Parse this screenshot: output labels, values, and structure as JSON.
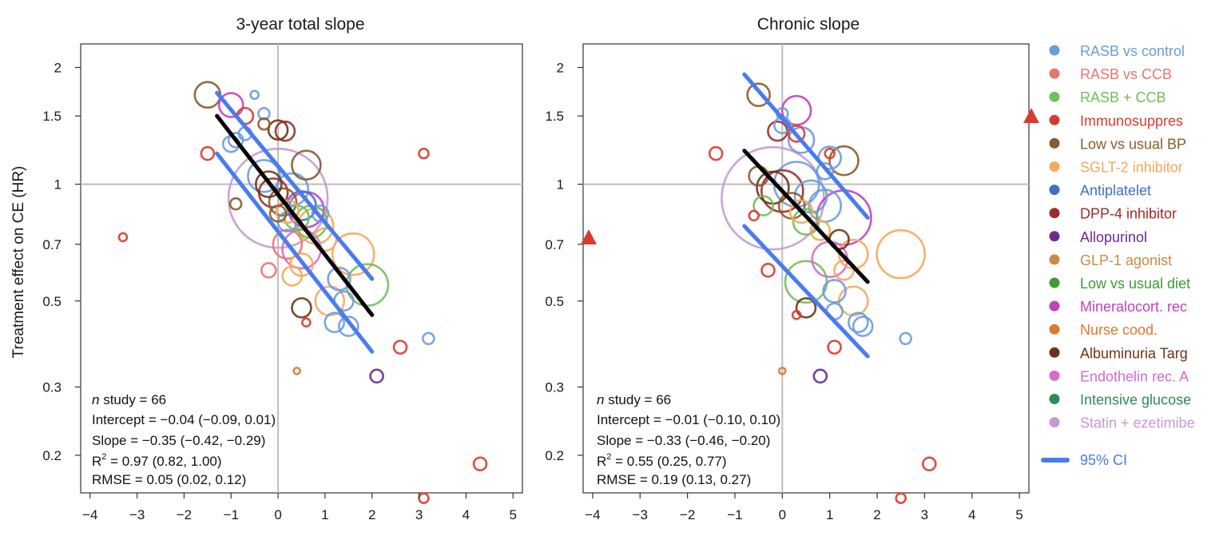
{
  "figure": {
    "ylabel": "Treatment effect on CE (HR)"
  },
  "legend": {
    "items": [
      {
        "label": "RASB vs control",
        "color": "#6a9be0"
      },
      {
        "label": "RASB vs CCB",
        "color": "#e7766e"
      },
      {
        "label": "RASB + CCB",
        "color": "#6fbf5a"
      },
      {
        "label": "Immunosuppres",
        "color": "#d83b2e"
      },
      {
        "label": "Low vs usual BP",
        "color": "#8b5a2b"
      },
      {
        "label": "SGLT-2 inhibitor",
        "color": "#f5a95b"
      },
      {
        "label": "Antiplatelet",
        "color": "#3f70c4"
      },
      {
        "label": "DPP-4 inhibitor",
        "color": "#a02a2a"
      },
      {
        "label": "Allopurinol",
        "color": "#6a2a91"
      },
      {
        "label": "GLP-1 agonist",
        "color": "#c98a45"
      },
      {
        "label": "Low vs usual diet",
        "color": "#3f9a36"
      },
      {
        "label": "Mineralocort. rec",
        "color": "#c43fc2"
      },
      {
        "label": "Nurse cood.",
        "color": "#e0782e"
      },
      {
        "label": "Albuminuria Targ",
        "color": "#6a3515"
      },
      {
        "label": "Endothelin rec. A",
        "color": "#d86ad0"
      },
      {
        "label": "Intensive glucose",
        "color": "#2f8a55"
      },
      {
        "label": "Statin + ezetimibe",
        "color": "#c49ad0"
      }
    ],
    "ci_label": "95% CI",
    "ci_color": "#4a7bf0"
  },
  "chart_data": [
    {
      "type": "scatter",
      "title": "3-year total slope",
      "xlabel": "",
      "ylabel": "Treatment effect on CE (HR)",
      "xlim": [
        -4.2,
        5.2
      ],
      "ylim": [
        0.16,
        2.3
      ],
      "y_scale": "log",
      "xticks": [
        -4,
        -3,
        -2,
        -1,
        0,
        1,
        2,
        3,
        4,
        5
      ],
      "yticks": [
        0.2,
        0.3,
        0.5,
        0.7,
        1,
        1.5,
        2
      ],
      "ytick_labels": [
        "0.2",
        "0.3",
        "0.5",
        "0.7",
        "1",
        "1.5",
        "2"
      ],
      "reference_lines": {
        "x": 0,
        "y": 1
      },
      "regression": {
        "x": [
          -1.3,
          2.0
        ],
        "y": [
          1.5,
          0.46
        ]
      },
      "ci_upper": {
        "x": [
          -1.3,
          2.0
        ],
        "y": [
          1.72,
          0.57
        ]
      },
      "ci_lower": {
        "x": [
          -1.3,
          2.0
        ],
        "y": [
          1.2,
          0.37
        ]
      },
      "stats": {
        "n_italic": "n",
        "n_rest": " study = 66",
        "intercept": "Intercept = −0.04 (−0.09, 0.01)",
        "slope": "Slope = −0.35 (−0.42, −0.29)",
        "r2_pre": "R",
        "r2_sup": "2",
        "r2_post": " = 0.97 (0.82, 1.00)",
        "rmse": "RMSE = 0.05 (0.02, 0.12)"
      },
      "points": [
        {
          "x": 0.0,
          "y": 0.92,
          "size": 62,
          "group": 16
        },
        {
          "x": -1.5,
          "y": 1.7,
          "size": 16,
          "group": 4
        },
        {
          "x": -1.0,
          "y": 1.6,
          "size": 15,
          "group": 11
        },
        {
          "x": -0.7,
          "y": 1.5,
          "size": 10,
          "group": 3
        },
        {
          "x": -0.5,
          "y": 1.7,
          "size": 5,
          "group": 0
        },
        {
          "x": -0.3,
          "y": 1.52,
          "size": 7,
          "group": 0
        },
        {
          "x": -0.3,
          "y": 1.43,
          "size": 7,
          "group": 4
        },
        {
          "x": 0.0,
          "y": 1.38,
          "size": 12,
          "group": 13
        },
        {
          "x": 0.15,
          "y": 1.37,
          "size": 12,
          "group": 7
        },
        {
          "x": -1.5,
          "y": 1.2,
          "size": 8,
          "group": 3
        },
        {
          "x": -1.0,
          "y": 1.27,
          "size": 10,
          "group": 0
        },
        {
          "x": -0.9,
          "y": 1.3,
          "size": 9,
          "group": 0
        },
        {
          "x": -0.7,
          "y": 1.35,
          "size": 8,
          "group": 0
        },
        {
          "x": -0.9,
          "y": 0.89,
          "size": 7,
          "group": 4
        },
        {
          "x": -3.3,
          "y": 0.73,
          "size": 5,
          "group": 3
        },
        {
          "x": 3.1,
          "y": 1.2,
          "size": 6,
          "group": 3
        },
        {
          "x": 0.6,
          "y": 1.12,
          "size": 18,
          "group": 4
        },
        {
          "x": -0.2,
          "y": 1.0,
          "size": 16,
          "group": 13
        },
        {
          "x": -0.1,
          "y": 0.95,
          "size": 18,
          "group": 7
        },
        {
          "x": 0.1,
          "y": 0.9,
          "size": 17,
          "group": 4
        },
        {
          "x": 0.2,
          "y": 0.85,
          "size": 14,
          "group": 5
        },
        {
          "x": -0.3,
          "y": 1.05,
          "size": 20,
          "group": 0
        },
        {
          "x": 0.3,
          "y": 0.97,
          "size": 20,
          "group": 0
        },
        {
          "x": 0.5,
          "y": 0.88,
          "size": 18,
          "group": 6
        },
        {
          "x": 0.4,
          "y": 0.82,
          "size": 15,
          "group": 2
        },
        {
          "x": 0.7,
          "y": 0.8,
          "size": 20,
          "group": 2
        },
        {
          "x": 0.8,
          "y": 0.78,
          "size": 22,
          "group": 5
        },
        {
          "x": 0.6,
          "y": 0.86,
          "size": 22,
          "group": 11
        },
        {
          "x": 0.2,
          "y": 0.8,
          "size": 12,
          "group": 0
        },
        {
          "x": 0.0,
          "y": 0.84,
          "size": 10,
          "group": 4
        },
        {
          "x": 0.9,
          "y": 0.84,
          "size": 10,
          "group": 0
        },
        {
          "x": 1.0,
          "y": 0.72,
          "size": 14,
          "group": 5
        },
        {
          "x": 0.5,
          "y": 0.68,
          "size": 24,
          "group": 14
        },
        {
          "x": 0.2,
          "y": 0.7,
          "size": 18,
          "group": 1
        },
        {
          "x": 0.5,
          "y": 0.62,
          "size": 14,
          "group": 5
        },
        {
          "x": -0.2,
          "y": 0.6,
          "size": 9,
          "group": 1
        },
        {
          "x": 0.3,
          "y": 0.58,
          "size": 12,
          "group": 5
        },
        {
          "x": 1.6,
          "y": 0.66,
          "size": 26,
          "group": 5
        },
        {
          "x": 1.3,
          "y": 0.57,
          "size": 14,
          "group": 0
        },
        {
          "x": 1.1,
          "y": 0.5,
          "size": 18,
          "group": 5
        },
        {
          "x": 1.9,
          "y": 0.55,
          "size": 26,
          "group": 2
        },
        {
          "x": 1.4,
          "y": 0.5,
          "size": 12,
          "group": 0
        },
        {
          "x": 1.2,
          "y": 0.44,
          "size": 12,
          "group": 0
        },
        {
          "x": 1.5,
          "y": 0.43,
          "size": 12,
          "group": 0
        },
        {
          "x": 0.5,
          "y": 0.48,
          "size": 12,
          "group": 13
        },
        {
          "x": 0.6,
          "y": 0.44,
          "size": 5,
          "group": 3
        },
        {
          "x": 3.2,
          "y": 0.4,
          "size": 7,
          "group": 0
        },
        {
          "x": 2.6,
          "y": 0.38,
          "size": 8,
          "group": 3
        },
        {
          "x": 0.4,
          "y": 0.33,
          "size": 4,
          "group": 12
        },
        {
          "x": 2.1,
          "y": 0.32,
          "size": 8,
          "group": 8
        },
        {
          "x": 4.3,
          "y": 0.19,
          "size": 8,
          "group": 3
        },
        {
          "x": 3.1,
          "y": 0.155,
          "size": 6,
          "group": 3
        }
      ]
    },
    {
      "type": "scatter",
      "title": "Chronic slope",
      "xlabel": "",
      "ylabel": "",
      "xlim": [
        -4.2,
        5.2
      ],
      "ylim": [
        0.16,
        2.3
      ],
      "y_scale": "log",
      "xticks": [
        -4,
        -3,
        -2,
        -1,
        0,
        1,
        2,
        3,
        4,
        5
      ],
      "yticks": [
        0.2,
        0.3,
        0.5,
        0.7,
        1,
        1.5,
        2
      ],
      "ytick_labels": [
        "0.2",
        "0.3",
        "0.5",
        "0.7",
        "1",
        "1.5",
        "2"
      ],
      "reference_lines": {
        "x": 0,
        "y": 1
      },
      "regression": {
        "x": [
          -0.8,
          1.8
        ],
        "y": [
          1.22,
          0.56
        ]
      },
      "ci_upper": {
        "x": [
          -0.8,
          1.8
        ],
        "y": [
          1.92,
          0.82
        ]
      },
      "ci_lower": {
        "x": [
          -0.8,
          1.8
        ],
        "y": [
          0.78,
          0.36
        ]
      },
      "off_scale": [
        {
          "side": "left",
          "y": 0.73
        },
        {
          "side": "right",
          "y": 1.5
        }
      ],
      "stats": {
        "n_italic": "n",
        "n_rest": " study = 66",
        "intercept": "Intercept = −0.01 (−0.10, 0.10)",
        "slope": "Slope = −0.33 (−0.46, −0.20)",
        "r2_pre": "R",
        "r2_sup": "2",
        "r2_post": " = 0.55 (0.25, 0.77)",
        "rmse": "RMSE = 0.19 (0.13, 0.27)"
      },
      "points": [
        {
          "x": -0.2,
          "y": 0.92,
          "size": 64,
          "group": 16
        },
        {
          "x": -0.5,
          "y": 1.7,
          "size": 14,
          "group": 4
        },
        {
          "x": 0.3,
          "y": 1.55,
          "size": 18,
          "group": 11
        },
        {
          "x": 0.0,
          "y": 1.52,
          "size": 7,
          "group": 0
        },
        {
          "x": 0.0,
          "y": 1.42,
          "size": 10,
          "group": 0
        },
        {
          "x": -0.1,
          "y": 1.37,
          "size": 12,
          "group": 7
        },
        {
          "x": 0.3,
          "y": 1.35,
          "size": 10,
          "group": 3
        },
        {
          "x": 0.4,
          "y": 1.3,
          "size": 16,
          "group": 0
        },
        {
          "x": 1.0,
          "y": 1.2,
          "size": 6,
          "group": 3
        },
        {
          "x": 1.0,
          "y": 1.17,
          "size": 14,
          "group": 0
        },
        {
          "x": 1.3,
          "y": 1.15,
          "size": 18,
          "group": 4
        },
        {
          "x": -1.4,
          "y": 1.2,
          "size": 8,
          "group": 3
        },
        {
          "x": 0.9,
          "y": 1.08,
          "size": 10,
          "group": 0
        },
        {
          "x": -0.5,
          "y": 1.05,
          "size": 12,
          "group": 4
        },
        {
          "x": -0.2,
          "y": 0.98,
          "size": 20,
          "group": 13
        },
        {
          "x": 0.0,
          "y": 0.96,
          "size": 26,
          "group": 7
        },
        {
          "x": 0.3,
          "y": 1.0,
          "size": 28,
          "group": 0
        },
        {
          "x": 0.6,
          "y": 0.93,
          "size": 20,
          "group": 0
        },
        {
          "x": 0.9,
          "y": 0.88,
          "size": 20,
          "group": 0
        },
        {
          "x": 0.2,
          "y": 0.88,
          "size": 16,
          "group": 4
        },
        {
          "x": 0.4,
          "y": 0.85,
          "size": 14,
          "group": 5
        },
        {
          "x": -0.4,
          "y": 0.88,
          "size": 12,
          "group": 2
        },
        {
          "x": -0.6,
          "y": 0.83,
          "size": 6,
          "group": 3
        },
        {
          "x": 0.5,
          "y": 0.8,
          "size": 16,
          "group": 2
        },
        {
          "x": 0.8,
          "y": 0.76,
          "size": 12,
          "group": 5
        },
        {
          "x": 1.3,
          "y": 0.82,
          "size": 34,
          "group": 11
        },
        {
          "x": 1.2,
          "y": 0.72,
          "size": 12,
          "group": 13
        },
        {
          "x": 1.5,
          "y": 0.66,
          "size": 18,
          "group": 5
        },
        {
          "x": 2.5,
          "y": 0.66,
          "size": 30,
          "group": 5
        },
        {
          "x": 1.0,
          "y": 0.64,
          "size": 22,
          "group": 14
        },
        {
          "x": 1.3,
          "y": 0.6,
          "size": 12,
          "group": 5
        },
        {
          "x": 0.5,
          "y": 0.56,
          "size": 26,
          "group": 2
        },
        {
          "x": 1.1,
          "y": 0.53,
          "size": 14,
          "group": 0
        },
        {
          "x": 1.5,
          "y": 0.5,
          "size": 18,
          "group": 5
        },
        {
          "x": 1.1,
          "y": 0.47,
          "size": 10,
          "group": 0
        },
        {
          "x": 1.6,
          "y": 0.44,
          "size": 12,
          "group": 0
        },
        {
          "x": 1.7,
          "y": 0.43,
          "size": 12,
          "group": 0
        },
        {
          "x": 0.5,
          "y": 0.48,
          "size": 12,
          "group": 13
        },
        {
          "x": 0.3,
          "y": 0.46,
          "size": 5,
          "group": 3
        },
        {
          "x": -0.3,
          "y": 0.6,
          "size": 8,
          "group": 3
        },
        {
          "x": 2.6,
          "y": 0.4,
          "size": 7,
          "group": 0
        },
        {
          "x": 1.1,
          "y": 0.38,
          "size": 8,
          "group": 3
        },
        {
          "x": 0.0,
          "y": 0.33,
          "size": 4,
          "group": 12
        },
        {
          "x": 0.8,
          "y": 0.32,
          "size": 8,
          "group": 8
        },
        {
          "x": 3.1,
          "y": 0.19,
          "size": 8,
          "group": 3
        },
        {
          "x": 2.5,
          "y": 0.155,
          "size": 6,
          "group": 3
        }
      ]
    }
  ]
}
